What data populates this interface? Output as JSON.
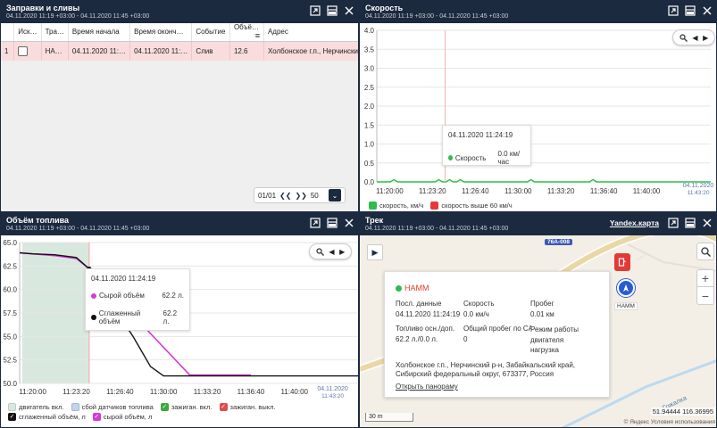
{
  "panels": {
    "refuel": {
      "title": "Заправки и сливы",
      "subtitle": "04.11.2020 11:19 +03:00 - 04.11.2020 11:45 +03:00",
      "columns": [
        "",
        "Иск…",
        "Тра…",
        "Время начала",
        "Время оконч…",
        "Событие",
        "Объё…",
        "Адрес"
      ],
      "rows": [
        {
          "num": "1",
          "exclude": false,
          "transport": "НА…",
          "start": "04.11.2020 11:…",
          "end": "04.11.2020 11:…",
          "event": "Слив",
          "volume": "12.6",
          "address": "Холбонское г.п., Нерчинский р-н"
        }
      ],
      "pager": {
        "pages": "01/01",
        "per_page": "50"
      }
    },
    "speed": {
      "title": "Скорость",
      "subtitle": "04.11.2020 11:19 +03:00 - 04.11.2020 11:45 +03:00",
      "tooltip": {
        "time": "04.11.2020 11:24:19",
        "series": "Скорость",
        "value": "0.0 км/час"
      },
      "legend": [
        {
          "label": "скорость, км/ч",
          "color": "#2ebd4a"
        },
        {
          "label": "скорость выше 60 км/ч",
          "color": "#e53935"
        }
      ],
      "date_label": "04.11.2020",
      "time_label": "11:43:20"
    },
    "fuel": {
      "title": "Объём топлива",
      "subtitle": "04.11.2020 11:19 +03:00 - 04.11.2020 11:45 +03:00",
      "tooltip": {
        "time": "04.11.2020 11:24:19",
        "rows": [
          {
            "label": "Сырой объём",
            "value": "62.2 л.",
            "color": "#d63bd6"
          },
          {
            "label": "Сглаженный объём",
            "value": "62.2 л.",
            "color": "#111111"
          }
        ]
      },
      "legend": [
        {
          "label": "двигатель вкл.",
          "color": "#d9e8df",
          "checked": false
        },
        {
          "label": "сбой датчиков топлива",
          "color": "#c2d3ea",
          "checked": false
        },
        {
          "label": "зажиган. вкл.",
          "color": "#3ca83c",
          "checked": true
        },
        {
          "label": "зажиган. выкл.",
          "color": "#e04a4a",
          "checked": true
        },
        {
          "label": "сглаженный объём, л",
          "color": "#111111",
          "checked": true
        },
        {
          "label": "сырой объём, л",
          "color": "#d63bd6",
          "checked": true
        }
      ],
      "date_label": "04.11.2020",
      "time_label": "11:43:20"
    },
    "track": {
      "title": "Трек",
      "subtitle": "04.11.2020 11:19 +03:00 - 04.11.2020 11:45 +03:00",
      "map_provider": "Yandex.карта",
      "vehicle_name": "НАММ",
      "road_label": "76А-008",
      "road_name": "р. Гожалка",
      "scale": "30 m",
      "coords": "51.94444 116.36995",
      "attribution": "© Яндекс Условия использования",
      "info": {
        "name": "НАММ",
        "h_last": "Посл. данные",
        "last": "04.11.2020 11:24:19",
        "h_speed": "Скорость",
        "speed": "0.0 км/ч",
        "h_mileage": "Пробег",
        "mileage": "0.01 км",
        "h_fuel": "Топливо осн./доп.",
        "fuel": "62.2 л./0.0 л.",
        "h_total": "Общий пробег по CAN",
        "total": "0",
        "h_mode": "Режим работы двигателя",
        "mode": "нагрузка",
        "address": "Холбонское г.п., Нерчинский р-н, Забайкальский край, Сибирский федеральный округ, 673377, Россия",
        "panorama": "Открыть панораму"
      }
    }
  },
  "chart_data": [
    {
      "type": "line",
      "title": "Скорость",
      "x": [
        "11:20:00",
        "11:23:20",
        "11:26:40",
        "11:30:00",
        "11:33:20",
        "11:36:40",
        "11:40:00",
        "11:43:20"
      ],
      "ylim": [
        0,
        4
      ],
      "yticks": [
        "0.0",
        "0.5",
        "1.0",
        "1.5",
        "2.0",
        "2.5",
        "3.0",
        "3.5",
        "4.0"
      ],
      "series": [
        {
          "name": "скорость, км/ч",
          "values": [
            0,
            0,
            0,
            0,
            0,
            0,
            0,
            0
          ]
        }
      ]
    },
    {
      "type": "line",
      "title": "Объём топлива",
      "x": [
        "11:20:00",
        "11:23:20",
        "11:26:40",
        "11:30:00",
        "11:33:20",
        "11:36:40",
        "11:40:00",
        "11:43:20"
      ],
      "ylim": [
        50,
        65
      ],
      "yticks": [
        "50.0",
        "52.5",
        "55.0",
        "57.5",
        "60.0",
        "62.5",
        "65.0"
      ],
      "series": [
        {
          "name": "сглаженный объём, л",
          "points": [
            [
              "11:19:00",
              63.9
            ],
            [
              "11:20:00",
              63.8
            ],
            [
              "11:21:40",
              63.7
            ],
            [
              "11:23:20",
              63.4
            ],
            [
              "11:24:19",
              62.2
            ],
            [
              "11:26:00",
              58.5
            ],
            [
              "11:27:40",
              55.0
            ],
            [
              "11:29:00",
              51.8
            ],
            [
              "11:30:00",
              50.8
            ],
            [
              "11:33:20",
              50.8
            ],
            [
              "11:36:40",
              50.8
            ],
            [
              "11:40:00",
              50.8
            ],
            [
              "11:45:00",
              50.8
            ]
          ]
        },
        {
          "name": "сырой объём, л",
          "points": [
            [
              "11:19:00",
              63.9
            ],
            [
              "11:20:00",
              63.8
            ],
            [
              "11:21:40",
              63.6
            ],
            [
              "11:23:20",
              63.3
            ],
            [
              "11:24:19",
              62.2
            ],
            [
              "11:32:00",
              50.9
            ],
            [
              "11:36:40",
              50.9
            ]
          ]
        }
      ]
    }
  ]
}
